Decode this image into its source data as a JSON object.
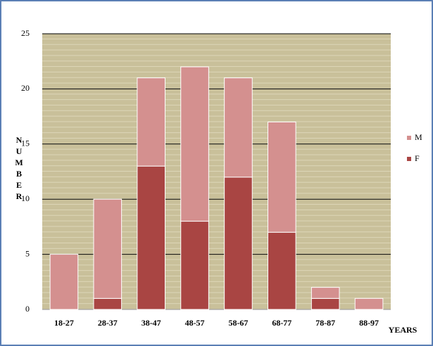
{
  "chart_data": {
    "type": "bar",
    "stacked": true,
    "categories": [
      "18-27",
      "28-37",
      "38-47",
      "48-57",
      "58-67",
      "68-77",
      "78-87",
      "88-97"
    ],
    "series": [
      {
        "name": "F",
        "color": "#a94543",
        "values": [
          0,
          1,
          13,
          8,
          12,
          7,
          1,
          0
        ]
      },
      {
        "name": "M",
        "color": "#d4908f",
        "values": [
          5,
          9,
          8,
          14,
          9,
          10,
          1,
          1
        ]
      }
    ],
    "y_label": "NUMBER",
    "x_label": "YEARS",
    "ylim": [
      0,
      25
    ],
    "yticks": [
      0,
      5,
      10,
      15,
      20,
      25
    ],
    "grid": true,
    "legend": "right"
  }
}
